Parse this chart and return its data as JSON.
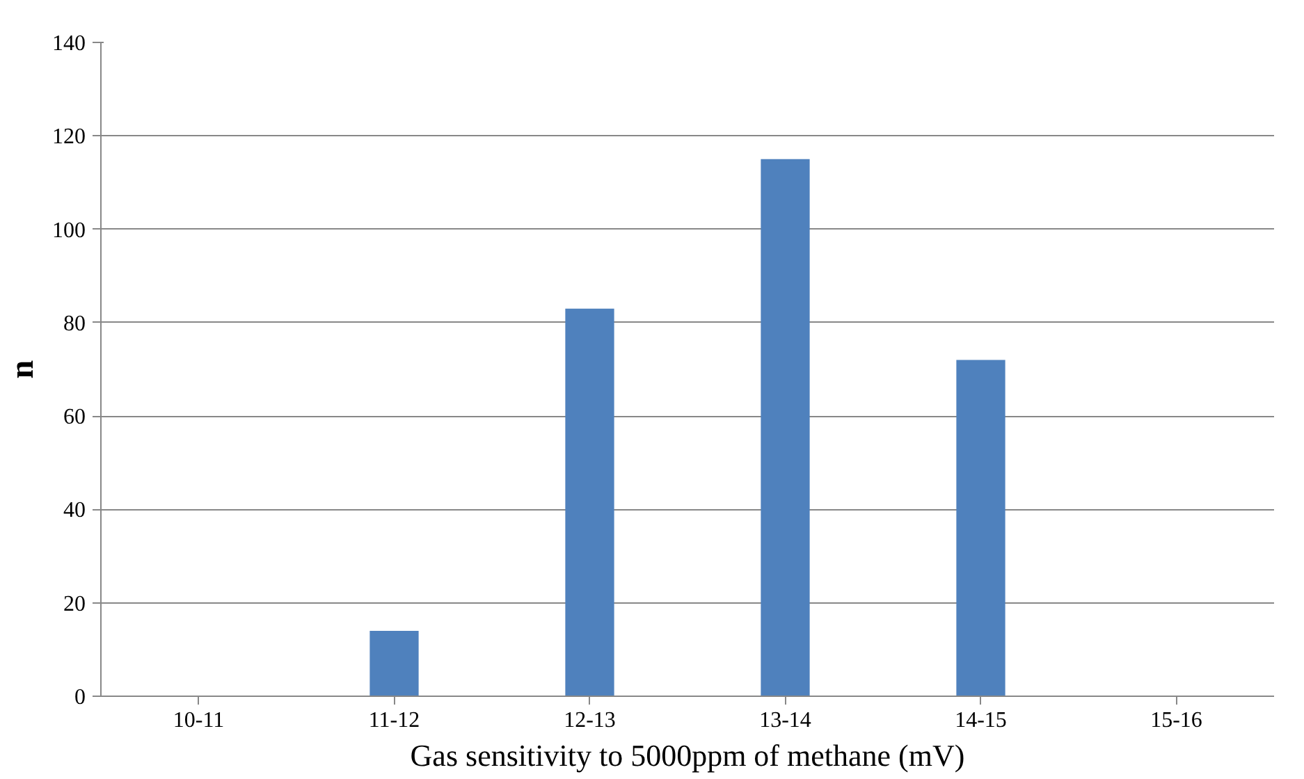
{
  "chart_data": {
    "type": "bar",
    "categories": [
      "10-11",
      "11-12",
      "12-13",
      "13-14",
      "14-15",
      "15-16"
    ],
    "values": [
      0,
      14,
      83,
      115,
      72,
      0
    ],
    "color": "#4f81bd",
    "xlabel": "Gas sensitivity to 5000ppm of methane (mV)",
    "ylabel": "n",
    "ylim": [
      0,
      140
    ],
    "yticks": [
      0,
      20,
      40,
      60,
      80,
      100,
      120,
      140
    ],
    "grid": "y"
  }
}
